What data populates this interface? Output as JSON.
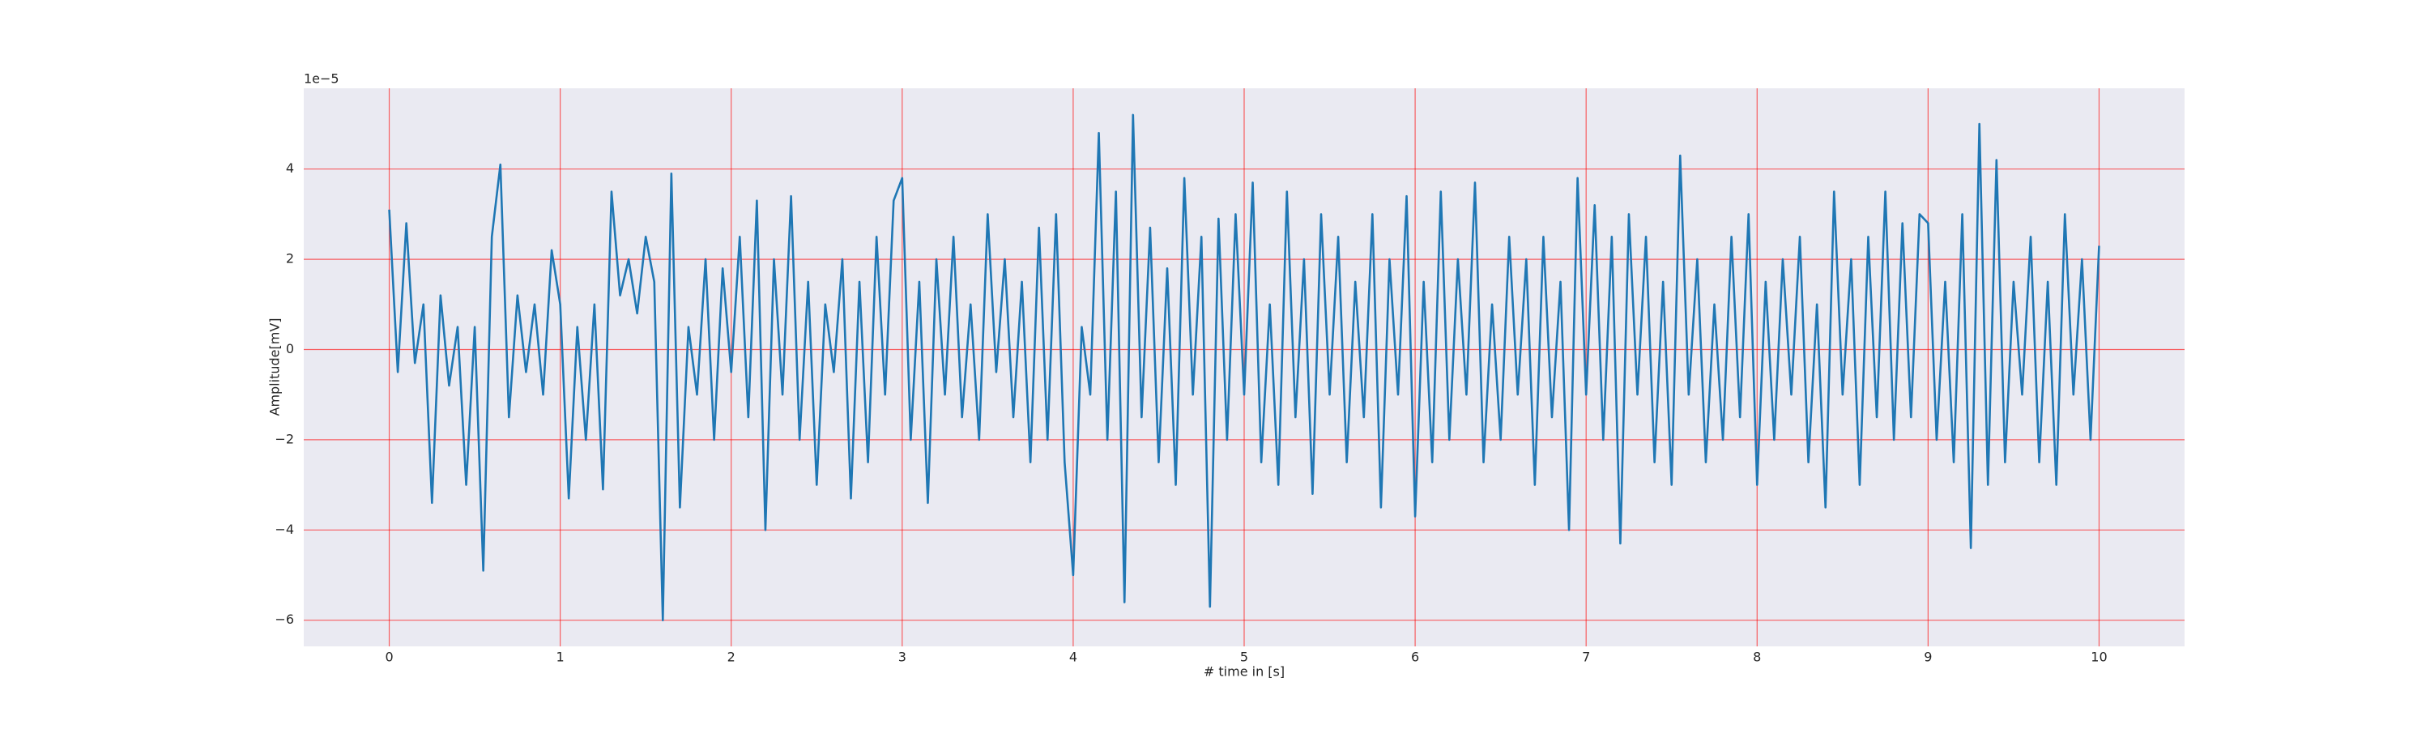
{
  "chart_data": {
    "type": "line",
    "xlabel": "# time in [s]",
    "ylabel": "Amplitude[mV]",
    "y_offset_label": "1e−5",
    "x": [
      0,
      0.05,
      0.1,
      0.15,
      0.2,
      0.25,
      0.3,
      0.35,
      0.4,
      0.45,
      0.5,
      0.55,
      0.6,
      0.65,
      0.7,
      0.75,
      0.8,
      0.85,
      0.9,
      0.95,
      1,
      1.05,
      1.1,
      1.15,
      1.2,
      1.25,
      1.3,
      1.35,
      1.4,
      1.45,
      1.5,
      1.55,
      1.6,
      1.65,
      1.7,
      1.75,
      1.8,
      1.85,
      1.9,
      1.95,
      2,
      2.05,
      2.1,
      2.15,
      2.2,
      2.25,
      2.3,
      2.35,
      2.4,
      2.45,
      2.5,
      2.55,
      2.6,
      2.65,
      2.7,
      2.75,
      2.8,
      2.85,
      2.9,
      2.95,
      3,
      3.05,
      3.1,
      3.15,
      3.2,
      3.25,
      3.3,
      3.35,
      3.4,
      3.45,
      3.5,
      3.55,
      3.6,
      3.65,
      3.7,
      3.75,
      3.8,
      3.85,
      3.9,
      3.95,
      4,
      4.05,
      4.1,
      4.15,
      4.2,
      4.25,
      4.3,
      4.35,
      4.4,
      4.45,
      4.5,
      4.55,
      4.6,
      4.65,
      4.7,
      4.75,
      4.8,
      4.85,
      4.9,
      4.95,
      5,
      5.05,
      5.1,
      5.15,
      5.2,
      5.25,
      5.3,
      5.35,
      5.4,
      5.45,
      5.5,
      5.55,
      5.6,
      5.65,
      5.7,
      5.75,
      5.8,
      5.85,
      5.9,
      5.95,
      6,
      6.05,
      6.1,
      6.15,
      6.2,
      6.25,
      6.3,
      6.35,
      6.4,
      6.45,
      6.5,
      6.55,
      6.6,
      6.65,
      6.7,
      6.75,
      6.8,
      6.85,
      6.9,
      6.95,
      7,
      7.05,
      7.1,
      7.15,
      7.2,
      7.25,
      7.3,
      7.35,
      7.4,
      7.45,
      7.5,
      7.55,
      7.6,
      7.65,
      7.7,
      7.75,
      7.8,
      7.85,
      7.9,
      7.95,
      8,
      8.05,
      8.1,
      8.15,
      8.2,
      8.25,
      8.3,
      8.35,
      8.4,
      8.45,
      8.5,
      8.55,
      8.6,
      8.65,
      8.7,
      8.75,
      8.8,
      8.85,
      8.9,
      8.95,
      9,
      9.05,
      9.1,
      9.15,
      9.2,
      9.25,
      9.3,
      9.35,
      9.4,
      9.45,
      9.5,
      9.55,
      9.6,
      9.65,
      9.7,
      9.75,
      9.8,
      9.85,
      9.9,
      9.95,
      10
    ],
    "series": [
      {
        "color": "#1f77b4",
        "values": [
          3.1,
          -0.5,
          2.8,
          -0.3,
          1.0,
          -3.4,
          1.2,
          -0.8,
          0.5,
          -3.0,
          0.5,
          -4.9,
          2.5,
          4.1,
          -1.5,
          1.2,
          -0.5,
          1.0,
          -1.0,
          2.2,
          1.0,
          -3.3,
          0.5,
          -2.0,
          1.0,
          -3.1,
          3.5,
          1.2,
          2.0,
          0.8,
          2.5,
          1.5,
          -6.0,
          3.9,
          -3.5,
          0.5,
          -1.0,
          2.0,
          -2.0,
          1.8,
          -0.5,
          2.5,
          -1.5,
          3.3,
          -4.0,
          2.0,
          -1.0,
          3.4,
          -2.0,
          1.5,
          -3.0,
          1.0,
          -0.5,
          2.0,
          -3.3,
          1.5,
          -2.5,
          2.5,
          -1.0,
          3.3,
          3.8,
          -2.0,
          1.5,
          -3.4,
          2.0,
          -1.0,
          2.5,
          -1.5,
          1.0,
          -2.0,
          3.0,
          -0.5,
          2.0,
          -1.5,
          1.5,
          -2.5,
          2.7,
          -2.0,
          3.0,
          -2.5,
          -5.0,
          0.5,
          -1.0,
          4.8,
          -2.0,
          3.5,
          -5.6,
          5.2,
          -1.5,
          2.7,
          -2.5,
          1.8,
          -3.0,
          3.8,
          -1.0,
          2.5,
          -5.7,
          2.9,
          -2.0,
          3.0,
          -1.0,
          3.7,
          -2.5,
          1.0,
          -3.0,
          3.5,
          -1.5,
          2.0,
          -3.2,
          3.0,
          -1.0,
          2.5,
          -2.5,
          1.5,
          -1.5,
          3.0,
          -3.5,
          2.0,
          -1.0,
          3.4,
          -3.7,
          1.5,
          -2.5,
          3.5,
          -2.0,
          2.0,
          -1.0,
          3.7,
          -2.5,
          1.0,
          -2.0,
          2.5,
          -1.0,
          2.0,
          -3.0,
          2.5,
          -1.5,
          1.5,
          -4.0,
          3.8,
          -1.0,
          3.2,
          -2.0,
          2.5,
          -4.3,
          3.0,
          -1.0,
          2.5,
          -2.5,
          1.5,
          -3.0,
          4.3,
          -1.0,
          2.0,
          -2.5,
          1.0,
          -2.0,
          2.5,
          -1.5,
          3.0,
          -3.0,
          1.5,
          -2.0,
          2.0,
          -1.0,
          2.5,
          -2.5,
          1.0,
          -3.5,
          3.5,
          -1.0,
          2.0,
          -3.0,
          2.5,
          -1.5,
          3.5,
          -2.0,
          2.8,
          -1.5,
          3.0,
          2.8,
          -2.0,
          1.5,
          -2.5,
          3.0,
          -4.4,
          5.0,
          -3.0,
          4.2,
          -2.5,
          1.5,
          -1.0,
          2.5,
          -2.5,
          1.5,
          -3.0,
          3.0,
          -1.0,
          2.0,
          -2.0,
          2.3
        ]
      }
    ],
    "xlim": [
      -0.5,
      10.5
    ],
    "ylim": [
      -6.58,
      5.79
    ],
    "xticks": [
      0,
      1,
      2,
      3,
      4,
      5,
      6,
      7,
      8,
      9,
      10
    ],
    "yticks": [
      {
        "value": -6,
        "label": "−6"
      },
      {
        "value": -4,
        "label": "−4"
      },
      {
        "value": -2,
        "label": "−2"
      },
      0,
      2,
      4
    ],
    "grid": true,
    "grid_color": "#ff0000",
    "background": "#eaeaf2"
  }
}
